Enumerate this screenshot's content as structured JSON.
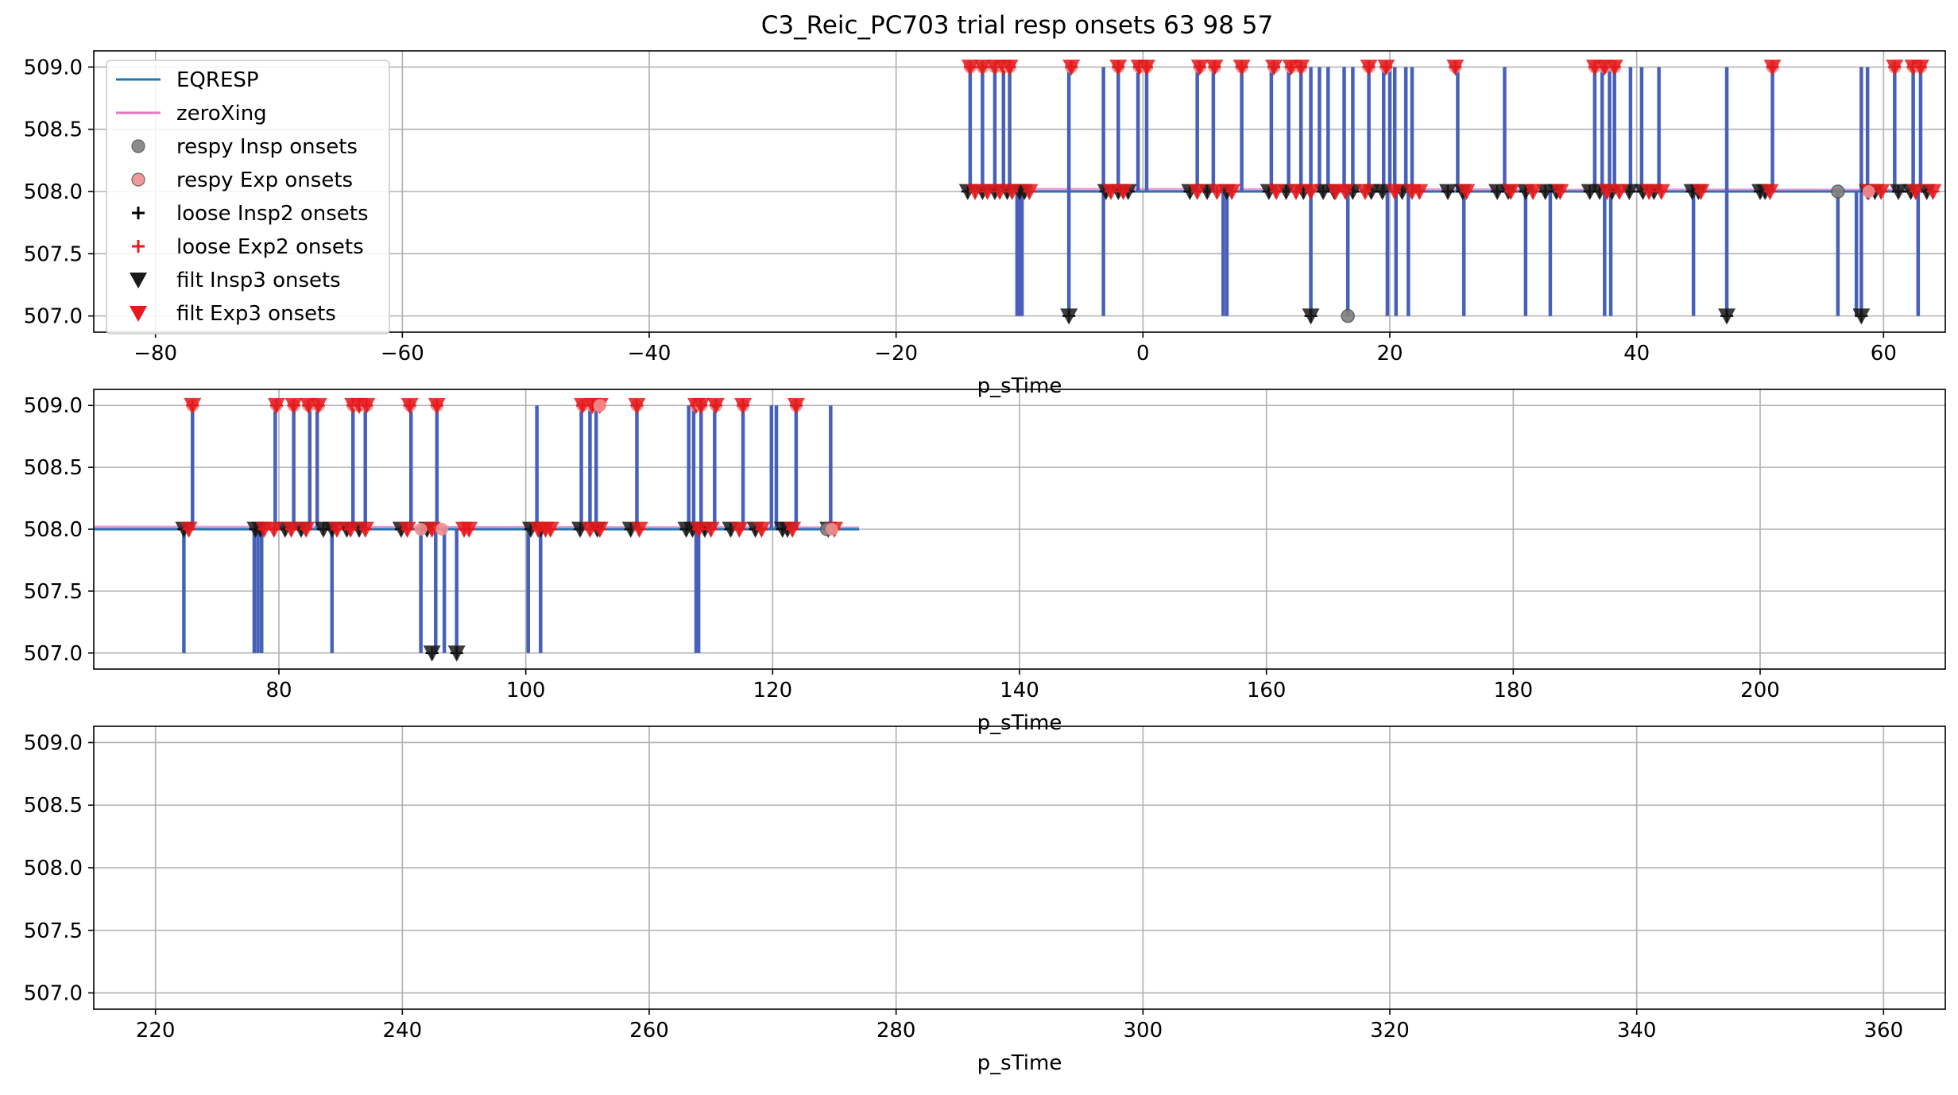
{
  "chart_data": {
    "type": "line",
    "title": "C3_Reic_PC703 trial resp onsets 63 98 57",
    "xlabel": "p_sTime",
    "ylim": [
      506.87,
      509.13
    ],
    "yticks": [
      507.0,
      507.5,
      508.0,
      508.5,
      509.0
    ],
    "ytick_labels": [
      "507.0",
      "507.5",
      "508.0",
      "508.5",
      "509.0"
    ],
    "grid": true,
    "colors": {
      "EQRESP": "#1f77b4",
      "zeroXing": "#e377c2",
      "overlay": "#6a4fbf",
      "insp_marker": "#000000",
      "exp_marker": "#d62728",
      "insp_circle": "#808080",
      "exp_circle": "#f28d8d",
      "grid": "#b0b0b0"
    },
    "legend": {
      "placement": "upper-left",
      "entries": [
        {
          "label": "EQRESP",
          "marker": "line",
          "color": "#1f77b4"
        },
        {
          "label": "zeroXing",
          "marker": "line",
          "color": "#e377c2"
        },
        {
          "label": "respy Insp onsets",
          "marker": "circle",
          "color": "#808080"
        },
        {
          "label": "respy Exp onsets",
          "marker": "circle",
          "color": "#f28d8d"
        },
        {
          "label": "loose Insp2 onsets",
          "marker": "plus",
          "color": "#000000"
        },
        {
          "label": "loose Exp2 onsets",
          "marker": "plus",
          "color": "#e41a1c"
        },
        {
          "label": "filt Insp3 onsets",
          "marker": "tri-down",
          "color": "#1a1a1a"
        },
        {
          "label": "filt Exp3 onsets",
          "marker": "tri-down",
          "color": "#e41a1c"
        }
      ]
    },
    "panels": [
      {
        "xlim": [
          -85,
          65
        ],
        "xticks": [
          -80,
          -60,
          -40,
          -20,
          0,
          20,
          40,
          60
        ],
        "xtick_labels": [
          "−80",
          "−60",
          "−40",
          "−20",
          "0",
          "20",
          "40",
          "60"
        ],
        "xlabel": "p_sTime",
        "signal_range": [
          -14.5,
          64
        ],
        "spikes_up": [
          -14,
          -13,
          -12,
          -11.3,
          -10.8,
          -6,
          -3.2,
          -2,
          -0.4,
          0.3,
          4.4,
          5.7,
          8,
          10.4,
          11.8,
          12.8,
          13.6,
          14.3,
          15,
          16.3,
          17,
          18.3,
          19.5,
          20,
          20.4,
          21.3,
          21.8,
          25.5,
          29.3,
          36.6,
          37.2,
          37.8,
          38.2,
          39.5,
          40.4,
          41.8,
          47.3,
          51,
          58.2,
          58.7,
          60.9,
          62.4,
          63
        ],
        "spikes_down": [
          -10.2,
          -10,
          -9.8,
          -6,
          -3.2,
          6.5,
          6.8,
          13.6,
          16.6,
          19.8,
          20.5,
          21.5,
          26,
          31,
          33,
          37.4,
          37.9,
          44.6,
          47.3,
          56.3,
          57.8,
          58.2,
          62.8
        ],
        "exp_top": [
          -14,
          -13,
          -12,
          -11.3,
          -10.8,
          -5.8,
          -2,
          -0.3,
          0.3,
          4.6,
          5.8,
          8,
          10.6,
          12,
          12.8,
          18.3,
          19.7,
          25.3,
          36.6,
          37.4,
          38.2,
          51,
          60.9,
          62.4,
          63
        ],
        "insp_mid": [
          -14.2,
          -13,
          -12,
          -11,
          -10,
          -9.6,
          -3,
          -2,
          -1.2,
          3.8,
          5.2,
          6.8,
          10.2,
          11.6,
          13,
          14.6,
          15.5,
          17,
          18.5,
          19.4,
          21,
          24.7,
          25.9,
          28.7,
          29.6,
          31,
          32.6,
          33.5,
          36.2,
          37,
          38,
          39.4,
          40.5,
          41.4,
          44.5,
          45,
          50,
          50.4,
          58.7,
          59.3,
          61.2,
          62.2,
          63.5
        ],
        "exp_mid": [
          -13.6,
          -12.6,
          -11.6,
          -10.6,
          -9.2,
          -2.6,
          -1.6,
          4.4,
          6,
          7.2,
          10.8,
          12.4,
          13.6,
          15.6,
          16.4,
          18,
          20.4,
          21.8,
          22.4,
          26.2,
          29.8,
          31.6,
          33.8,
          37.6,
          38.6,
          41,
          42,
          45.2,
          50.8,
          58.8,
          59.8,
          62.6,
          64
        ],
        "insp_low": [
          -6,
          13.6,
          47.3,
          58.2
        ],
        "respy_insp": [
          [
            16.6,
            507.0
          ],
          [
            56.3,
            508.0
          ]
        ],
        "respy_exp": [
          [
            58.8,
            508.0
          ]
        ]
      },
      {
        "xlim": [
          65,
          215
        ],
        "xticks": [
          80,
          100,
          120,
          140,
          160,
          180,
          200
        ],
        "xtick_labels": [
          "80",
          "100",
          "120",
          "140",
          "160",
          "180",
          "200"
        ],
        "xlabel": "p_sTime",
        "signal_range": [
          65,
          127
        ],
        "spikes_up": [
          73,
          79.7,
          81.2,
          82.5,
          83.1,
          86,
          87,
          90.7,
          92.8,
          100.9,
          104.5,
          105.2,
          105.7,
          109,
          113.2,
          113.6,
          114.2,
          115.3,
          117.6,
          119.9,
          120.3,
          121.9,
          124.7
        ],
        "spikes_down": [
          72.3,
          78,
          78.3,
          78.6,
          84.3,
          91.5,
          92.7,
          93.4,
          94.4,
          100.2,
          101.2,
          113.8,
          114
        ],
        "exp_top": [
          73,
          79.8,
          81.2,
          82.4,
          83.2,
          86,
          86.5,
          87.1,
          90.6,
          92.8,
          104.6,
          105.4,
          106,
          109,
          113.8,
          114.2,
          115.4,
          117.6,
          121.9
        ],
        "insp_mid": [
          72.3,
          78.1,
          78.5,
          80.5,
          81.8,
          83.6,
          84.3,
          85.5,
          86.5,
          89.9,
          92,
          100.4,
          101.2,
          104.4,
          105.8,
          108.5,
          113,
          113.5,
          114.5,
          116.6,
          118.6,
          120.8,
          121.2,
          124.5
        ],
        "exp_mid": [
          72.7,
          78.8,
          79.6,
          81,
          82.2,
          84.7,
          85.8,
          87,
          90.4,
          92.4,
          95,
          95.4,
          101,
          101.6,
          102,
          105.2,
          106,
          109.2,
          114,
          115,
          117.3,
          119.1,
          121.6,
          125
        ],
        "insp_low": [
          92.4,
          94.4
        ],
        "respy_insp": [
          [
            124.4,
            508.0
          ]
        ],
        "respy_exp": [
          [
            91.5,
            508.0
          ],
          [
            93.2,
            508.0
          ],
          [
            106,
            509.0
          ],
          [
            124.8,
            508.0
          ]
        ]
      },
      {
        "xlim": [
          215,
          365
        ],
        "xticks": [
          220,
          240,
          260,
          280,
          300,
          320,
          340,
          360
        ],
        "xtick_labels": [
          "220",
          "240",
          "260",
          "280",
          "300",
          "320",
          "340",
          "360"
        ],
        "xlabel": "p_sTime",
        "signal_range": null,
        "spikes_up": [],
        "spikes_down": [],
        "exp_top": [],
        "insp_mid": [],
        "exp_mid": [],
        "insp_low": [],
        "respy_insp": [],
        "respy_exp": []
      }
    ]
  }
}
